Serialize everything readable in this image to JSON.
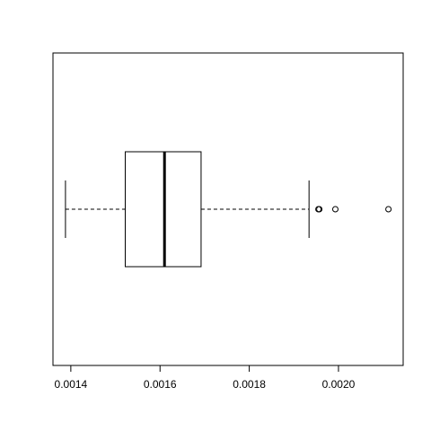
{
  "chart_data": {
    "type": "boxplot",
    "orientation": "horizontal",
    "xlim": [
      0.00136,
      0.002145
    ],
    "ticks": [
      {
        "value": 0.0014,
        "label": "0.0014"
      },
      {
        "value": 0.0016,
        "label": "0.0016"
      },
      {
        "value": 0.0018,
        "label": "0.0018"
      },
      {
        "value": 0.002,
        "label": "0.0020"
      }
    ],
    "box": {
      "whisker_low": 0.001388,
      "q1": 0.001522,
      "median": 0.00161,
      "q3": 0.001692,
      "whisker_high": 0.001934
    },
    "outliers": [
      0.001955,
      0.001957,
      0.001993,
      0.002112
    ]
  }
}
